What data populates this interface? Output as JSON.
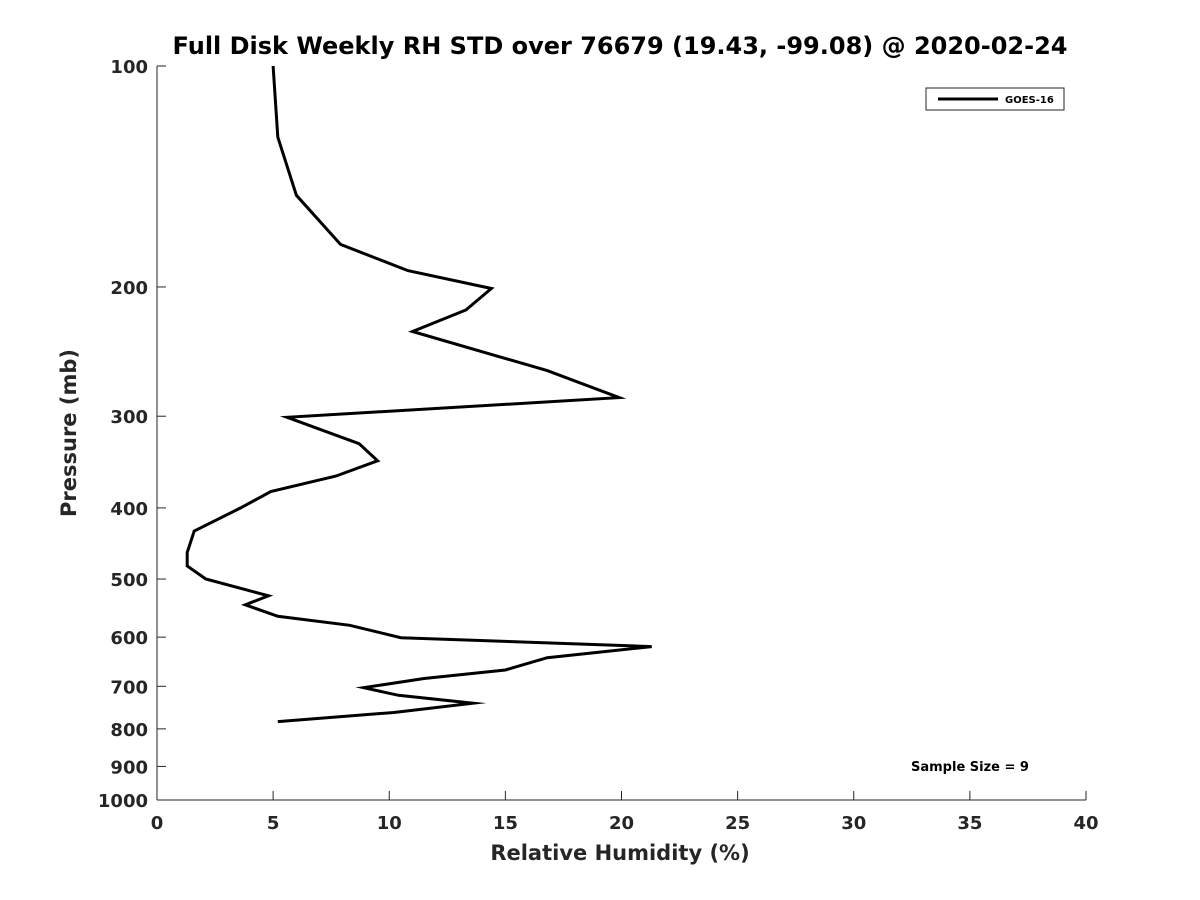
{
  "chart_data": {
    "type": "line",
    "title": "Full Disk Weekly RH STD over 76679 (19.43, -99.08) @ 2020-02-24",
    "xlabel": "Relative Humidity (%)",
    "ylabel": "Pressure (mb)",
    "xlim": [
      0,
      40
    ],
    "ylim": [
      100,
      1000
    ],
    "y_scale": "log",
    "y_reversed": true,
    "x_ticks": [
      0,
      5,
      10,
      15,
      20,
      25,
      30,
      35,
      40
    ],
    "x_tick_labels": [
      "0",
      "5",
      "10",
      "15",
      "20",
      "25",
      "30",
      "35",
      "40"
    ],
    "y_ticks": [
      100,
      200,
      300,
      400,
      500,
      600,
      700,
      800,
      900,
      1000
    ],
    "y_tick_labels": [
      "100",
      "200",
      "300",
      "400",
      "500",
      "600",
      "700",
      "800",
      "900",
      "1000"
    ],
    "grid": false,
    "legend_position": "top-right",
    "series": [
      {
        "name": "GOES-16",
        "color": "#000000",
        "x": [
          5.0,
          5.2,
          6.0,
          7.9,
          10.8,
          14.4,
          13.3,
          11.0,
          16.8,
          19.9,
          5.6,
          8.7,
          9.5,
          7.7,
          4.9,
          3.6,
          1.6,
          1.3,
          1.3,
          2.1,
          4.8,
          3.8,
          5.2,
          8.3,
          10.5,
          21.3,
          16.8,
          15.0,
          11.5,
          8.9,
          10.4,
          13.6,
          10.2,
          5.2
        ],
        "y": [
          100,
          125,
          150,
          175,
          190,
          201,
          215,
          230,
          260,
          283,
          301,
          327,
          345,
          362,
          380,
          400,
          430,
          460,
          480,
          500,
          527,
          542,
          562,
          578,
          601,
          618,
          640,
          665,
          683,
          703,
          720,
          738,
          760,
          782
        ]
      }
    ],
    "annotations": [
      "Sample Size = 9"
    ]
  }
}
